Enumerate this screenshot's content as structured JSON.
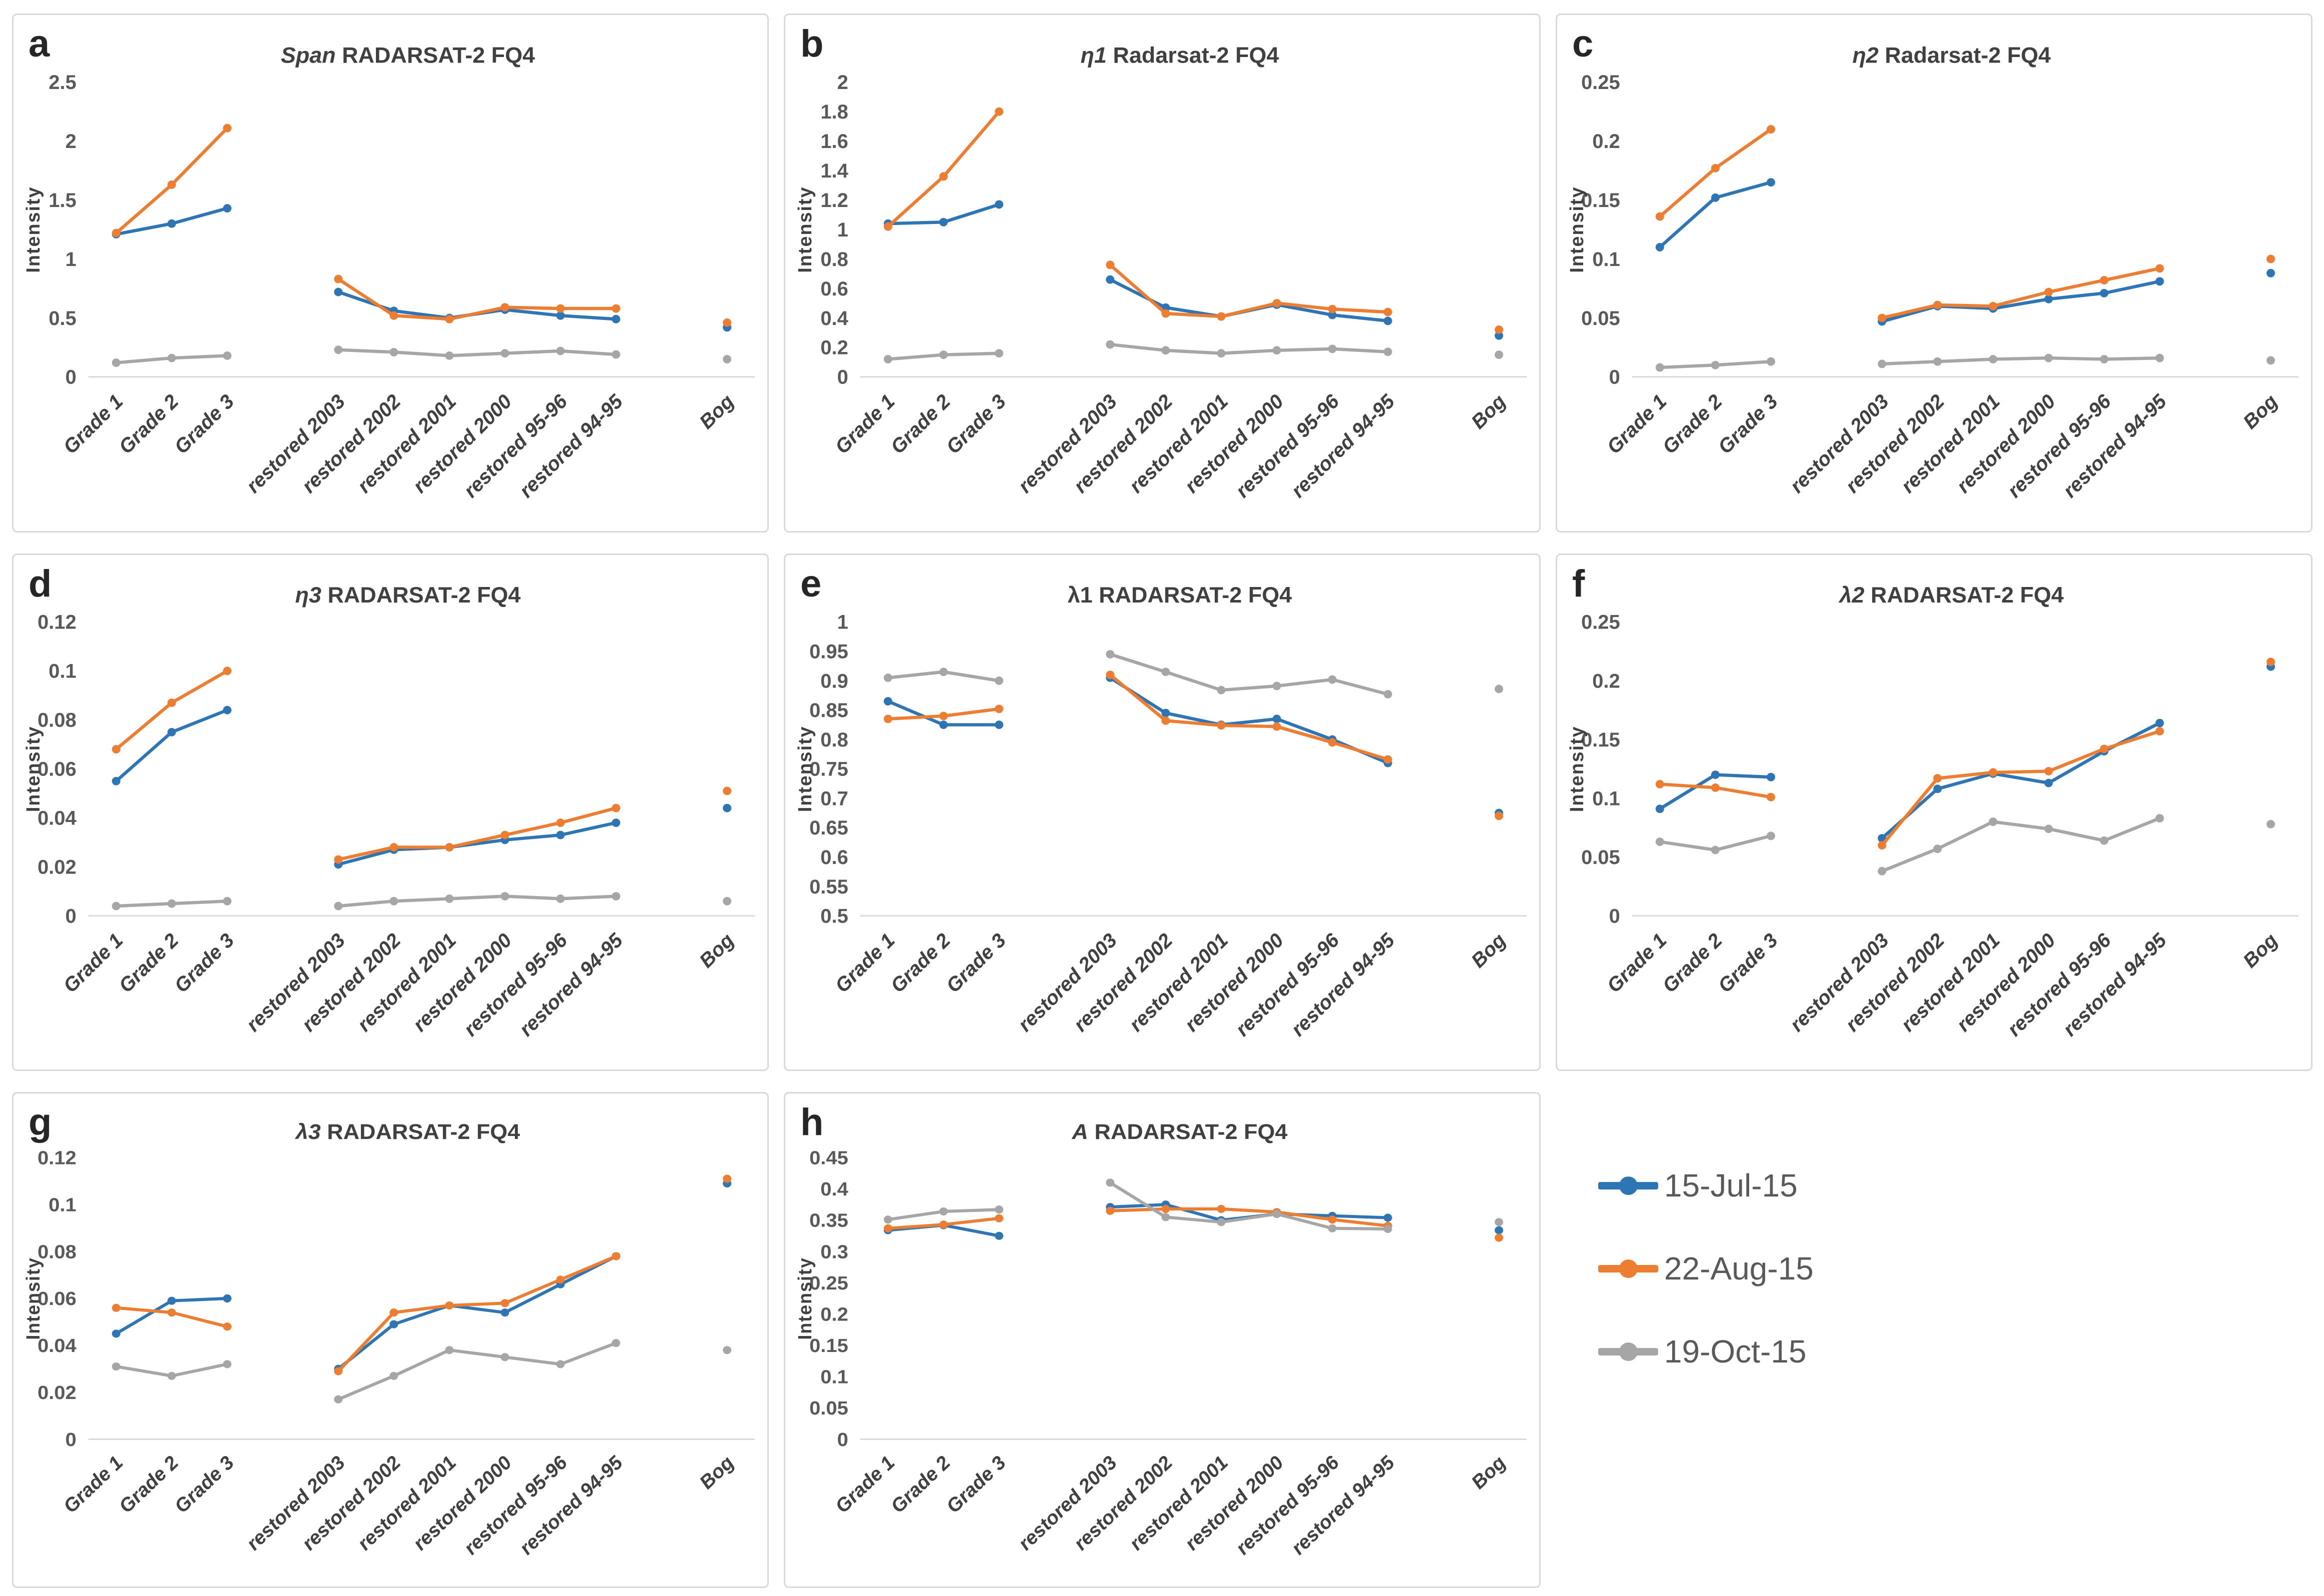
{
  "figure": {
    "description": "Eight-panel line chart figure of RADARSAT-2 FQ4 polarimetric intensity parameters across peatland site classes for three acquisition dates"
  },
  "colors": {
    "series_blue": "#2E75B6",
    "series_orange": "#ED7D31",
    "series_gray": "#A6A6A6",
    "axis_line": "#D9D9D9",
    "tick_text": "#595959",
    "title_text": "#404040",
    "xlabel_text": "#404040",
    "panel_letter": "#262626",
    "panel_border": "#D9D9D9",
    "legend_text": "#595959"
  },
  "legend": {
    "items": [
      {
        "label": "15-Jul-15",
        "color": "#2E75B6"
      },
      {
        "label": "22-Aug-15",
        "color": "#ED7D31"
      },
      {
        "label": "19-Oct-15",
        "color": "#A6A6A6"
      }
    ]
  },
  "chart_data": [
    {
      "type": "line",
      "panel_label": "a",
      "title_prefix": "Span",
      "title_prefix_italic": true,
      "title_rest": " RADARSAT-2 FQ4",
      "ylabel": "Intensity",
      "ylim": [
        0,
        2.5
      ],
      "yticks": [
        0,
        0.5,
        1,
        1.5,
        2,
        2.5
      ],
      "grid": false,
      "categories": [
        "Grade 1",
        "Grade 2",
        "Grade 3",
        "restored 2003",
        "restored 2002",
        "restored 2001",
        "restored 2000",
        "restored 95-96",
        "restored 94-95",
        "Bog"
      ],
      "x_slots": [
        0,
        1,
        2,
        4,
        5,
        6,
        7,
        8,
        9,
        11
      ],
      "series": [
        {
          "name": "15-Jul-15",
          "values": [
            1.21,
            1.3,
            1.43,
            0.72,
            0.56,
            0.5,
            0.57,
            0.52,
            0.49,
            0.42
          ]
        },
        {
          "name": "22-Aug-15",
          "values": [
            1.22,
            1.63,
            2.11,
            0.83,
            0.52,
            0.49,
            0.59,
            0.58,
            0.58,
            0.46
          ]
        },
        {
          "name": "19-Oct-15",
          "values": [
            0.12,
            0.16,
            0.18,
            0.23,
            0.21,
            0.18,
            0.2,
            0.22,
            0.19,
            0.15
          ]
        }
      ]
    },
    {
      "type": "line",
      "panel_label": "b",
      "title_prefix": "η1",
      "title_prefix_italic": true,
      "title_rest": " Radarsat-2 FQ4",
      "ylabel": "Intensity",
      "ylim": [
        0,
        2
      ],
      "yticks": [
        0,
        0.2,
        0.4,
        0.6,
        0.8,
        1,
        1.2,
        1.4,
        1.6,
        1.8,
        2
      ],
      "grid": false,
      "categories": [
        "Grade 1",
        "Grade 2",
        "Grade 3",
        "restored 2003",
        "restored 2002",
        "restored 2001",
        "restored 2000",
        "restored 95-96",
        "restored 94-95",
        "Bog"
      ],
      "x_slots": [
        0,
        1,
        2,
        4,
        5,
        6,
        7,
        8,
        9,
        11
      ],
      "series": [
        {
          "name": "15-Jul-15",
          "values": [
            1.04,
            1.05,
            1.17,
            0.66,
            0.47,
            0.41,
            0.49,
            0.42,
            0.38,
            0.28
          ]
        },
        {
          "name": "22-Aug-15",
          "values": [
            1.02,
            1.36,
            1.8,
            0.76,
            0.43,
            0.41,
            0.5,
            0.46,
            0.44,
            0.32
          ]
        },
        {
          "name": "19-Oct-15",
          "values": [
            0.12,
            0.15,
            0.16,
            0.22,
            0.18,
            0.16,
            0.18,
            0.19,
            0.17,
            0.15
          ]
        }
      ]
    },
    {
      "type": "line",
      "panel_label": "c",
      "title_prefix": "η2",
      "title_prefix_italic": true,
      "title_rest": " Radarsat-2 FQ4",
      "ylabel": "Intensity",
      "ylim": [
        0,
        0.25
      ],
      "yticks": [
        0,
        0.05,
        0.1,
        0.15,
        0.2,
        0.25
      ],
      "grid": false,
      "categories": [
        "Grade 1",
        "Grade 2",
        "Grade 3",
        "restored 2003",
        "restored 2002",
        "restored 2001",
        "restored 2000",
        "restored 95-96",
        "restored 94-95",
        "Bog"
      ],
      "x_slots": [
        0,
        1,
        2,
        4,
        5,
        6,
        7,
        8,
        9,
        11
      ],
      "series": [
        {
          "name": "15-Jul-15",
          "values": [
            0.11,
            0.152,
            0.165,
            0.047,
            0.06,
            0.058,
            0.066,
            0.071,
            0.081,
            0.088
          ]
        },
        {
          "name": "22-Aug-15",
          "values": [
            0.136,
            0.177,
            0.21,
            0.05,
            0.061,
            0.06,
            0.072,
            0.082,
            0.092,
            0.1
          ]
        },
        {
          "name": "19-Oct-15",
          "values": [
            0.008,
            0.01,
            0.013,
            0.011,
            0.013,
            0.015,
            0.016,
            0.015,
            0.016,
            0.014
          ]
        }
      ]
    },
    {
      "type": "line",
      "panel_label": "d",
      "title_prefix": "η3",
      "title_prefix_italic": true,
      "title_rest": " RADARSAT-2 FQ4",
      "ylabel": "Intensity",
      "ylim": [
        0,
        0.12
      ],
      "yticks": [
        0,
        0.02,
        0.04,
        0.06,
        0.08,
        0.1,
        0.12
      ],
      "grid": false,
      "categories": [
        "Grade 1",
        "Grade 2",
        "Grade 3",
        "restored 2003",
        "restored 2002",
        "restored 2001",
        "restored 2000",
        "restored 95-96",
        "restored 94-95",
        "Bog"
      ],
      "x_slots": [
        0,
        1,
        2,
        4,
        5,
        6,
        7,
        8,
        9,
        11
      ],
      "series": [
        {
          "name": "15-Jul-15",
          "values": [
            0.055,
            0.075,
            0.084,
            0.021,
            0.027,
            0.028,
            0.031,
            0.033,
            0.038,
            0.044
          ]
        },
        {
          "name": "22-Aug-15",
          "values": [
            0.068,
            0.087,
            0.1,
            0.023,
            0.028,
            0.028,
            0.033,
            0.038,
            0.044,
            0.051
          ]
        },
        {
          "name": "19-Oct-15",
          "values": [
            0.004,
            0.005,
            0.006,
            0.004,
            0.006,
            0.007,
            0.008,
            0.007,
            0.008,
            0.006
          ]
        }
      ]
    },
    {
      "type": "line",
      "panel_label": "e",
      "title_prefix": "λ1",
      "title_prefix_italic": false,
      "title_rest": " RADARSAT-2 FQ4",
      "ylabel": "Intensity",
      "ylim": [
        0.5,
        1
      ],
      "yticks": [
        0.5,
        0.55,
        0.6,
        0.65,
        0.7,
        0.75,
        0.8,
        0.85,
        0.9,
        0.95,
        1
      ],
      "grid": false,
      "categories": [
        "Grade 1",
        "Grade 2",
        "Grade 3",
        "restored 2003",
        "restored 2002",
        "restored 2001",
        "restored 2000",
        "restored 95-96",
        "restored 94-95",
        "Bog"
      ],
      "x_slots": [
        0,
        1,
        2,
        4,
        5,
        6,
        7,
        8,
        9,
        11
      ],
      "series": [
        {
          "name": "15-Jul-15",
          "values": [
            0.865,
            0.825,
            0.825,
            0.905,
            0.845,
            0.825,
            0.835,
            0.8,
            0.76,
            0.675
          ]
        },
        {
          "name": "22-Aug-15",
          "values": [
            0.835,
            0.84,
            0.852,
            0.91,
            0.832,
            0.824,
            0.822,
            0.795,
            0.766,
            0.67
          ]
        },
        {
          "name": "19-Oct-15",
          "values": [
            0.905,
            0.915,
            0.9,
            0.945,
            0.915,
            0.884,
            0.891,
            0.902,
            0.877,
            0.886
          ]
        }
      ]
    },
    {
      "type": "line",
      "panel_label": "f",
      "title_prefix": "λ2",
      "title_prefix_italic": true,
      "title_rest": " RADARSAT-2 FQ4",
      "ylabel": "Intensity",
      "ylim": [
        0,
        0.25
      ],
      "yticks": [
        0,
        0.05,
        0.1,
        0.15,
        0.2,
        0.25
      ],
      "grid": false,
      "categories": [
        "Grade 1",
        "Grade 2",
        "Grade 3",
        "restored 2003",
        "restored 2002",
        "restored 2001",
        "restored 2000",
        "restored 95-96",
        "restored 94-95",
        "Bog"
      ],
      "x_slots": [
        0,
        1,
        2,
        4,
        5,
        6,
        7,
        8,
        9,
        11
      ],
      "series": [
        {
          "name": "15-Jul-15",
          "values": [
            0.091,
            0.12,
            0.118,
            0.066,
            0.108,
            0.121,
            0.113,
            0.14,
            0.164,
            0.212
          ]
        },
        {
          "name": "22-Aug-15",
          "values": [
            0.112,
            0.109,
            0.101,
            0.06,
            0.117,
            0.122,
            0.123,
            0.142,
            0.157,
            0.216
          ]
        },
        {
          "name": "19-Oct-15",
          "values": [
            0.063,
            0.056,
            0.068,
            0.038,
            0.057,
            0.08,
            0.074,
            0.064,
            0.083,
            0.078
          ]
        }
      ]
    },
    {
      "type": "line",
      "panel_label": "g",
      "title_prefix": "λ3",
      "title_prefix_italic": true,
      "title_rest": " RADARSAT-2 FQ4",
      "ylabel": "Intensity",
      "ylim": [
        0,
        0.12
      ],
      "yticks": [
        0,
        0.02,
        0.04,
        0.06,
        0.08,
        0.1,
        0.12
      ],
      "grid": false,
      "categories": [
        "Grade 1",
        "Grade 2",
        "Grade 3",
        "restored 2003",
        "restored 2002",
        "restored 2001",
        "restored 2000",
        "restored 95-96",
        "restored 94-95",
        "Bog"
      ],
      "x_slots": [
        0,
        1,
        2,
        4,
        5,
        6,
        7,
        8,
        9,
        11
      ],
      "series": [
        {
          "name": "15-Jul-15",
          "values": [
            0.045,
            0.059,
            0.06,
            0.03,
            0.049,
            0.057,
            0.054,
            0.066,
            0.078,
            0.109
          ]
        },
        {
          "name": "22-Aug-15",
          "values": [
            0.056,
            0.054,
            0.048,
            0.029,
            0.054,
            0.057,
            0.058,
            0.068,
            0.078,
            0.111
          ]
        },
        {
          "name": "19-Oct-15",
          "values": [
            0.031,
            0.027,
            0.032,
            0.017,
            0.027,
            0.038,
            0.035,
            0.032,
            0.041,
            0.038
          ]
        }
      ]
    },
    {
      "type": "line",
      "panel_label": "h",
      "title_prefix": "A",
      "title_prefix_italic": true,
      "title_rest": " RADARSAT-2 FQ4",
      "ylabel": "Intensity",
      "ylim": [
        0,
        0.45
      ],
      "yticks": [
        0,
        0.05,
        0.1,
        0.15,
        0.2,
        0.25,
        0.3,
        0.35,
        0.4,
        0.45
      ],
      "grid": false,
      "categories": [
        "Grade 1",
        "Grade 2",
        "Grade 3",
        "restored 2003",
        "restored 2002",
        "restored 2001",
        "restored 2000",
        "restored 95-96",
        "restored 94-95",
        "Bog"
      ],
      "x_slots": [
        0,
        1,
        2,
        4,
        5,
        6,
        7,
        8,
        9,
        11
      ],
      "series": [
        {
          "name": "15-Jul-15",
          "values": [
            0.334,
            0.342,
            0.325,
            0.371,
            0.375,
            0.35,
            0.36,
            0.357,
            0.354,
            0.334
          ]
        },
        {
          "name": "22-Aug-15",
          "values": [
            0.337,
            0.343,
            0.353,
            0.365,
            0.368,
            0.368,
            0.363,
            0.351,
            0.341,
            0.322
          ]
        },
        {
          "name": "19-Oct-15",
          "values": [
            0.351,
            0.364,
            0.367,
            0.41,
            0.355,
            0.347,
            0.36,
            0.337,
            0.336,
            0.347
          ]
        }
      ]
    }
  ]
}
